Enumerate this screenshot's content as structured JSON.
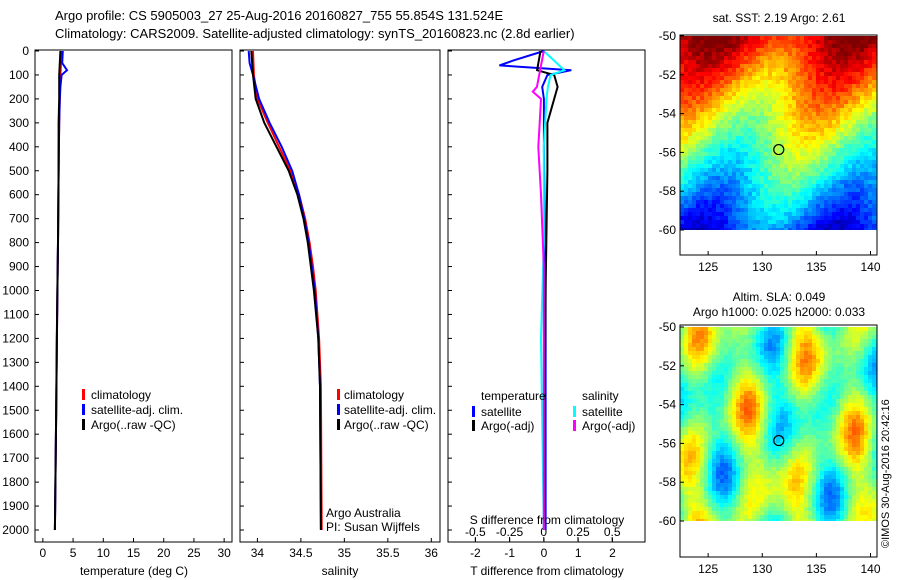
{
  "title": {
    "line1": "Argo profile: CS 5905003_27 25-Aug-2016 20160827_755 55.854S 131.524E",
    "line2": "Climatology: CARS2009. Satellite-adjusted climatology: synTS_20160823.nc (2.8d earlier)"
  },
  "copyright": "©IMOS 30-Aug-2016 20:42:16",
  "depth_ticks": [
    "0",
    "100",
    "200",
    "300",
    "400",
    "500",
    "600",
    "700",
    "800",
    "900",
    "1000",
    "1100",
    "1200",
    "1300",
    "1400",
    "1500",
    "1600",
    "1700",
    "1800",
    "1900",
    "2000"
  ],
  "colors": {
    "climatology": "#ff0000",
    "satellite": "#0000ff",
    "argo": "#000000",
    "sal_satellite": "#00ffff",
    "sal_argo": "#ff00ff"
  },
  "chart_data": [
    {
      "type": "line",
      "xlabel": "temperature (deg C)",
      "xticks": [
        "0",
        "5",
        "10",
        "15",
        "20",
        "25",
        "30"
      ],
      "xlim": [
        -1.3,
        31.3
      ],
      "ylim": [
        2050,
        0
      ],
      "legend": [
        "climatology",
        "satellite-adj. clim.",
        "Argo(..raw -QC)"
      ],
      "series": [
        {
          "name": "climatology",
          "depth": [
            0,
            50,
            100,
            200,
            300,
            500,
            800,
            1000,
            1500,
            2000
          ],
          "values": [
            3.0,
            3.0,
            2.9,
            2.8,
            2.7,
            2.6,
            2.5,
            2.4,
            2.2,
            2.0
          ]
        },
        {
          "name": "satellite-adj. clim.",
          "depth": [
            0,
            50,
            80,
            100,
            150,
            200,
            300,
            500,
            800,
            1000,
            1500,
            2000
          ],
          "values": [
            3.3,
            3.2,
            4.0,
            3.1,
            2.9,
            2.8,
            2.7,
            2.6,
            2.5,
            2.4,
            2.2,
            2.0
          ]
        },
        {
          "name": "Argo(..raw -QC)",
          "depth": [
            0,
            50,
            100,
            200,
            300,
            500,
            800,
            1000,
            1200,
            1500,
            2000
          ],
          "values": [
            2.9,
            2.8,
            2.7,
            2.7,
            2.6,
            2.6,
            2.5,
            2.4,
            2.3,
            2.2,
            2.0
          ]
        }
      ]
    },
    {
      "type": "line",
      "xlabel": "salinity",
      "xticks": [
        "34",
        "34.5",
        "35",
        "35.5",
        "36"
      ],
      "xlim": [
        33.8,
        36.1
      ],
      "ylim": [
        2050,
        0
      ],
      "legend": [
        "climatology",
        "satellite-adj. clim.",
        "Argo(..raw -QC)"
      ],
      "annotation": [
        "Argo Australia",
        "PI: Susan Wijffels"
      ],
      "series": [
        {
          "name": "climatology",
          "depth": [
            0,
            100,
            200,
            300,
            400,
            500,
            600,
            700,
            800,
            900,
            1000,
            1200,
            1400,
            2000
          ],
          "values": [
            33.95,
            33.96,
            34.0,
            34.12,
            34.25,
            34.38,
            34.48,
            34.55,
            34.6,
            34.64,
            34.67,
            34.71,
            34.73,
            34.74
          ]
        },
        {
          "name": "satellite-adj. clim.",
          "depth": [
            0,
            50,
            100,
            200,
            300,
            400,
            500,
            600,
            700,
            800,
            1000,
            1200,
            1400,
            2000
          ],
          "values": [
            33.9,
            33.91,
            33.95,
            34.02,
            34.14,
            34.28,
            34.4,
            34.48,
            34.54,
            34.59,
            34.66,
            34.7,
            34.72,
            34.73
          ]
        },
        {
          "name": "Argo(..raw -QC)",
          "depth": [
            0,
            100,
            200,
            300,
            400,
            500,
            600,
            700,
            800,
            1000,
            1200,
            1400,
            2000
          ],
          "values": [
            33.93,
            33.95,
            33.98,
            34.08,
            34.22,
            34.36,
            34.46,
            34.53,
            34.58,
            34.65,
            34.7,
            34.72,
            34.73
          ]
        }
      ]
    },
    {
      "type": "line",
      "xlabel": "T difference from climatology",
      "x2label": "S difference from climatology",
      "xticks": [
        "-2",
        "-1",
        "0",
        "1",
        "2"
      ],
      "x2ticks": [
        "-0.5",
        "-0.25",
        "0",
        "0.25",
        "0.5"
      ],
      "xlim": [
        -2.8,
        2.95
      ],
      "x2lim": [
        -0.7,
        0.74
      ],
      "ylim": [
        2050,
        0
      ],
      "legend_titles": [
        "temperature",
        "salinity"
      ],
      "legend": [
        "satellite",
        "Argo(-adj)",
        "satellite",
        "Argo(-adj)"
      ],
      "series": [
        {
          "name": "T satellite",
          "axis": "T",
          "depth": [
            0,
            40,
            60,
            80,
            100,
            150,
            200,
            400,
            1000,
            2000
          ],
          "values": [
            0,
            -0.9,
            -1.3,
            0.8,
            0.1,
            -0.05,
            0,
            0,
            0.05,
            0.05
          ]
        },
        {
          "name": "T Argo(-adj)",
          "axis": "T",
          "depth": [
            0,
            80,
            100,
            150,
            200,
            300,
            400,
            500,
            1000,
            2000
          ],
          "values": [
            -0.1,
            -0.2,
            0.3,
            0.4,
            0.3,
            0.1,
            0.1,
            0.1,
            0.05,
            0
          ]
        },
        {
          "name": "S satellite",
          "axis": "S",
          "depth": [
            0,
            80,
            100,
            150,
            200,
            400,
            800,
            1200,
            2000
          ],
          "values": [
            0,
            0.15,
            0.05,
            0.03,
            0.02,
            0.0,
            0.0,
            -0.02,
            0.0
          ]
        },
        {
          "name": "S Argo(-adj)",
          "axis": "S",
          "depth": [
            0,
            150,
            170,
            200,
            300,
            400,
            600,
            900,
            2000
          ],
          "values": [
            0,
            -0.05,
            -0.08,
            -0.02,
            -0.03,
            -0.04,
            -0.02,
            0,
            0
          ]
        }
      ]
    },
    {
      "type": "heatmap",
      "title": "sat. SST: 2.19 Argo: 2.61",
      "xticks": [
        "125",
        "130",
        "135",
        "140"
      ],
      "yticks": [
        "-50",
        "-52",
        "-54",
        "-56",
        "-58",
        "-60"
      ],
      "xlim": [
        122.4,
        140.6
      ],
      "ylim": [
        -61.2,
        -50
      ],
      "argo_position": [
        131.524,
        -55.854
      ]
    },
    {
      "type": "heatmap",
      "title": "Altim. SLA: 0.049",
      "subtitle": "Argo h1000: 0.025 h2000: 0.033",
      "xticks": [
        "125",
        "130",
        "135",
        "140"
      ],
      "yticks": [
        "-50",
        "-52",
        "-54",
        "-56",
        "-58",
        "-60"
      ],
      "xlim": [
        122.4,
        140.6
      ],
      "ylim": [
        -61.9,
        -50
      ],
      "argo_position": [
        131.524,
        -55.854
      ]
    }
  ]
}
